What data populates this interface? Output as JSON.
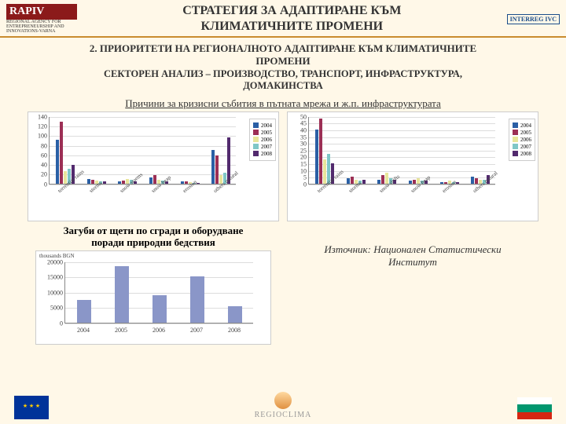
{
  "header": {
    "rapiv": "RAPIV",
    "rapiv_sub": "REGIONAL AGENCY FOR ENTREPRENEURSHIP AND INNOVATIONS-VARNA",
    "title_l1": "СТРАТЕГИЯ ЗА АДАПТИРАНЕ КЪМ",
    "title_l2": "КЛИМАТИЧНИТЕ ПРОМЕНИ",
    "interreg": "INTERREG IVC"
  },
  "subtitle1_l1": "2. ПРИОРИТЕТИ НА РЕГИОНАЛНОТО АДАПТИРАНЕ КЪМ КЛИМАТИЧНИТЕ",
  "subtitle1_l2": "ПРОМЕНИ",
  "subtitle2_l1": "СЕКТОРЕН АНАЛИЗ – ПРОИЗВОДСТВО, ТРАНСПОРТ, ИНФРАСТРУКТУРА,",
  "subtitle2_l2": "ДОМАКИНСТВА",
  "caption_charts12": "Причини за кризисни събития в пътната мрежа и ж.п. инфраструктурата",
  "caption_chart3_l1": "Загуби от щети по сгради и оборудване",
  "caption_chart3_l2": "поради природни бедствия",
  "source_l1": "Източник: Национален Статистически",
  "source_l2": "Институт",
  "series_colors": {
    "2004": "#2a5fa5",
    "2005": "#9c2f55",
    "2006": "#e8e59a",
    "2007": "#7fc7c7",
    "2008": "#522a6e"
  },
  "bar_color_chart3": "#8a96c8",
  "legend_years": [
    "2004",
    "2005",
    "2006",
    "2007",
    "2008"
  ],
  "chart1": {
    "ymax": 140,
    "yticks": [
      0,
      20,
      40,
      60,
      80,
      100,
      120,
      140
    ],
    "categories": [
      "torrential rains",
      "storms",
      "snow storms",
      "snow heap",
      "erosion",
      "others natural"
    ],
    "values": {
      "2004": [
        90,
        10,
        5,
        12,
        5,
        70
      ],
      "2005": [
        128,
        8,
        6,
        18,
        4,
        58
      ],
      "2006": [
        25,
        6,
        10,
        8,
        3,
        18
      ],
      "2007": [
        30,
        5,
        7,
        6,
        2,
        22
      ],
      "2008": [
        38,
        4,
        5,
        5,
        2,
        95
      ]
    }
  },
  "chart2": {
    "ymax": 50,
    "yticks": [
      0,
      5,
      10,
      15,
      20,
      25,
      30,
      35,
      40,
      45,
      50
    ],
    "categories": [
      "torrential rains",
      "storms",
      "snow drifts",
      "snow heap",
      "erosion",
      "others natural"
    ],
    "values": {
      "2004": [
        40,
        4,
        3,
        2,
        1,
        5
      ],
      "2005": [
        48,
        5,
        6,
        3,
        1,
        4
      ],
      "2006": [
        18,
        3,
        8,
        4,
        2,
        3
      ],
      "2007": [
        22,
        2,
        4,
        2,
        1,
        3
      ],
      "2008": [
        15,
        3,
        3,
        2,
        1,
        6
      ]
    }
  },
  "chart3": {
    "ymax": 20000,
    "yticks": [
      0,
      5000,
      10000,
      15000,
      20000
    ],
    "axis_title": "thousands BGN",
    "categories": [
      "2004",
      "2005",
      "2006",
      "2007",
      "2008"
    ],
    "values": [
      7500,
      18500,
      9000,
      15000,
      5500
    ]
  },
  "footer": {
    "regio": "REGIOCLIMA",
    "bg_flag_colors": [
      "#ffffff",
      "#00966e",
      "#d62612"
    ]
  }
}
